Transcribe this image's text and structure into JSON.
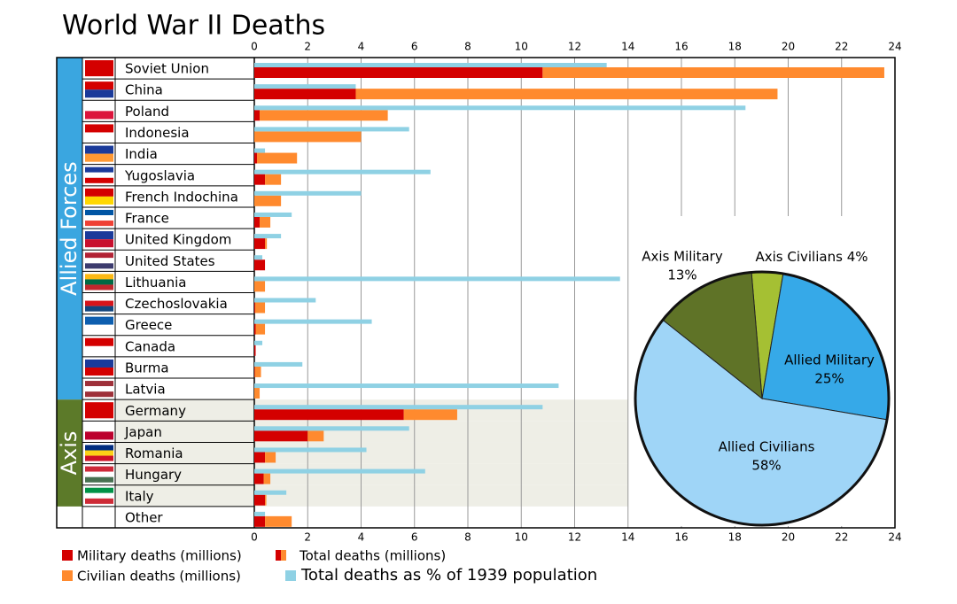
{
  "chart_data": [
    {
      "type": "bar",
      "title": "World War II Deaths",
      "categories": [
        "Soviet Union",
        "China",
        "Poland",
        "Indonesia",
        "India",
        "Yugoslavia",
        "French Indochina",
        "France",
        "United Kingdom",
        "United States",
        "Lithuania",
        "Czechoslovakia",
        "Greece",
        "Canada",
        "Burma",
        "Latvia",
        "Germany",
        "Japan",
        "Romania",
        "Hungary",
        "Italy",
        "Other"
      ],
      "category_groups": [
        "Allied Forces",
        "Allied Forces",
        "Allied Forces",
        "Allied Forces",
        "Allied Forces",
        "Allied Forces",
        "Allied Forces",
        "Allied Forces",
        "Allied Forces",
        "Allied Forces",
        "Allied Forces",
        "Allied Forces",
        "Allied Forces",
        "Allied Forces",
        "Allied Forces",
        "Allied Forces",
        "Axis",
        "Axis",
        "Axis",
        "Axis",
        "Axis",
        null
      ],
      "group_colors": {
        "Allied Forces": "#3aa6e0",
        "Axis": "#5c7a29"
      },
      "series": [
        {
          "name": "Military deaths (millions)",
          "color": "#d40000",
          "stack": "total",
          "values": [
            10.8,
            3.8,
            0.2,
            0,
            0.1,
            0.4,
            0,
            0.2,
            0.4,
            0.4,
            0,
            0.03,
            0.05,
            0.05,
            0.02,
            0,
            5.6,
            2.0,
            0.4,
            0.35,
            0.4,
            0.4
          ]
        },
        {
          "name": "Civilian deaths (millions)",
          "color": "#ff8a2e",
          "stack": "total",
          "values": [
            12.8,
            15.8,
            4.8,
            4.0,
            1.5,
            0.6,
            1.0,
            0.4,
            0.07,
            0,
            0.4,
            0.37,
            0.35,
            0,
            0.23,
            0.2,
            2.0,
            0.6,
            0.4,
            0.25,
            0.05,
            1.0
          ]
        },
        {
          "name": "Total deaths as % of 1939 population",
          "color": "#8fd1e4",
          "values": [
            13.2,
            3.8,
            18.4,
            5.8,
            0.4,
            6.6,
            4.0,
            1.4,
            1.0,
            0.3,
            13.7,
            2.3,
            4.4,
            0.3,
            1.8,
            11.4,
            10.8,
            5.8,
            4.2,
            6.4,
            1.2,
            0.4
          ]
        }
      ],
      "total_legend": "Total deaths (millions)",
      "xlim": [
        0,
        24
      ],
      "xticks": [
        0,
        2,
        4,
        6,
        8,
        10,
        12,
        14,
        16,
        18,
        20,
        22,
        24
      ],
      "grid": true
    },
    {
      "type": "pie",
      "labels": [
        "Axis Civilians",
        "Allied Military",
        "Allied Civilians",
        "Axis Military"
      ],
      "values": [
        4,
        25,
        58,
        13
      ],
      "value_labels": [
        "4%",
        "25%",
        "58%",
        "13%"
      ],
      "colors": [
        "#a5c033",
        "#36a9e8",
        "#9fd5f7",
        "#5f7327"
      ]
    }
  ]
}
